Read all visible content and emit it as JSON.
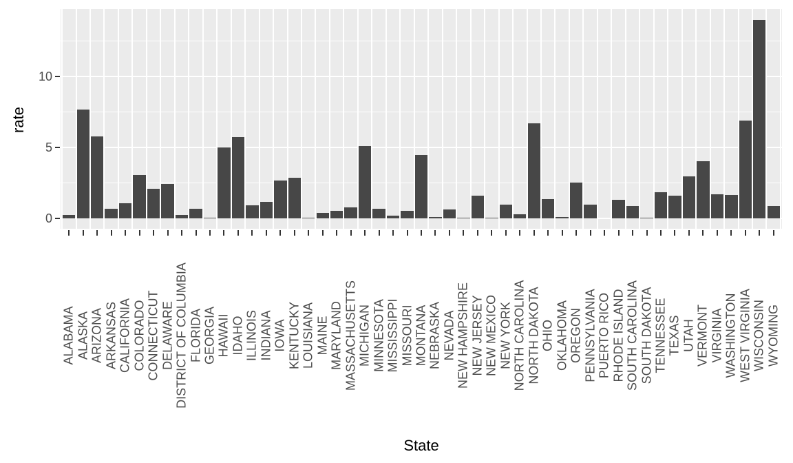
{
  "chart_data": {
    "type": "bar",
    "title": "",
    "xlabel": "State",
    "ylabel": "rate",
    "legend": "none",
    "grid": "on",
    "panel_bg": "#EBEBEB",
    "grid_color": "#FFFFFF",
    "bar_color": "#474747",
    "tick_color": "#333333",
    "axis_text_color": "#4D4D4D",
    "ylim": [
      0,
      14.76
    ],
    "yticks": [
      0,
      5,
      10
    ],
    "yticks_minor": [
      2.5,
      7.5,
      12.5
    ],
    "categories": [
      "ALABAMA",
      "ALASKA",
      "ARIZONA",
      "ARKANSAS",
      "CALIFORNIA",
      "COLORADO",
      "CONNECTICUT",
      "DELAWARE",
      "DISTRICT OF COLUMBIA",
      "FLORIDA",
      "GEORGIA",
      "HAWAII",
      "IDAHO",
      "ILLINOIS",
      "INDIANA",
      "IOWA",
      "KENTUCKY",
      "LOUISIANA",
      "MAINE",
      "MARYLAND",
      "MASSACHUSETTS",
      "MICHIGAN",
      "MINNESOTA",
      "MISSISSIPPI",
      "MISSOURI",
      "MONTANA",
      "NEBRASKA",
      "NEVADA",
      "NEW HAMPSHIRE",
      "NEW JERSEY",
      "NEW MEXICO",
      "NEW YORK",
      "NORTH CAROLINA",
      "NORTH DAKOTA",
      "OHIO",
      "OKLAHOMA",
      "OREGON",
      "PENNSYLVANIA",
      "PUERTO RICO",
      "RHODE ISLAND",
      "SOUTH CAROLINA",
      "SOUTH DAKOTA",
      "TENNESSEE",
      "TEXAS",
      "UTAH",
      "VERMONT",
      "VIRGINIA",
      "WASHINGTON",
      "WEST VIRGINIA",
      "WISCONSIN",
      "WYOMING"
    ],
    "values": [
      0.25,
      7.7,
      5.8,
      0.7,
      1.1,
      3.1,
      2.1,
      2.45,
      0.25,
      0.7,
      0.05,
      5.0,
      5.75,
      0.95,
      1.2,
      2.7,
      2.9,
      0.05,
      0.4,
      0.55,
      0.8,
      5.1,
      0.7,
      0.2,
      0.55,
      4.5,
      0.1,
      0.65,
      0.05,
      1.6,
      0.02,
      1.0,
      0.3,
      6.7,
      1.4,
      0.1,
      2.55,
      1.0,
      0.0,
      1.35,
      0.9,
      0.05,
      1.85,
      1.6,
      3.0,
      4.05,
      1.7,
      1.65,
      6.9,
      14.0,
      0.9
    ]
  }
}
